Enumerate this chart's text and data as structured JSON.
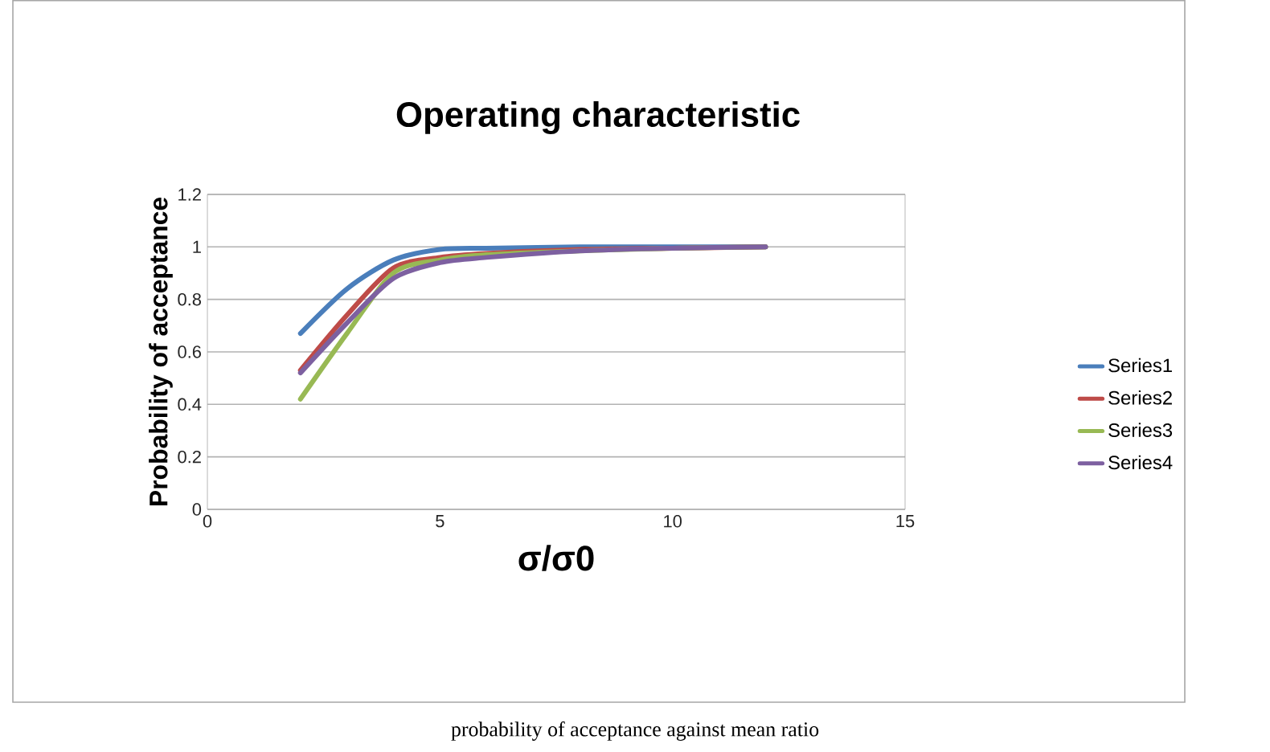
{
  "chart_data": {
    "type": "line",
    "title": "Operating characteristic",
    "xlabel": "σ/σ0",
    "ylabel": "Probability of acceptance",
    "annotations": [
      "probability of acceptance against mean ratio"
    ],
    "x": [
      2,
      3,
      4,
      5,
      6,
      8,
      10,
      12
    ],
    "series": [
      {
        "name": "Series1",
        "color": "#4a7ebb",
        "values": [
          0.67,
          0.84,
          0.95,
          0.99,
          0.995,
          1,
          1,
          1
        ]
      },
      {
        "name": "Series2",
        "color": "#be4b48",
        "values": [
          0.53,
          0.74,
          0.92,
          0.96,
          0.975,
          0.99,
          0.995,
          1
        ]
      },
      {
        "name": "Series3",
        "color": "#98b954",
        "values": [
          0.42,
          0.67,
          0.9,
          0.95,
          0.97,
          0.985,
          0.995,
          1
        ]
      },
      {
        "name": "Series4",
        "color": "#7d60a0",
        "values": [
          0.52,
          0.71,
          0.88,
          0.94,
          0.96,
          0.985,
          0.995,
          1
        ]
      }
    ],
    "xlim": [
      0,
      15
    ],
    "xticks": [
      0,
      5,
      10,
      15
    ],
    "ylim": [
      0,
      1.2
    ],
    "yticks": [
      0,
      0.2,
      0.4,
      0.6,
      0.8,
      1,
      1.2
    ],
    "grid": "y",
    "legend": "right",
    "marker": "none",
    "line_style": "solid"
  }
}
